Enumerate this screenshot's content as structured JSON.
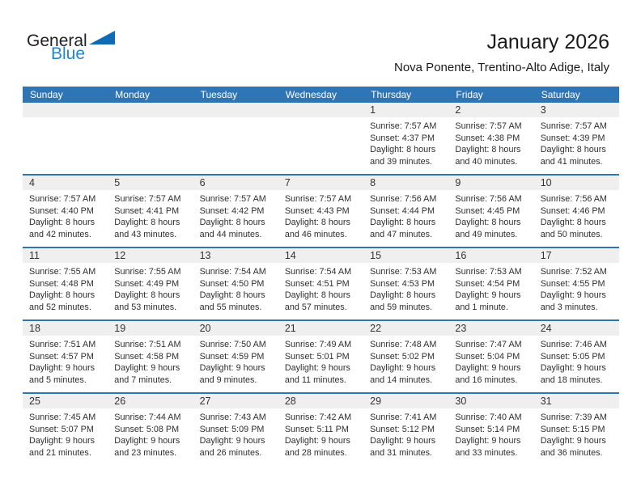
{
  "logo": {
    "text_black": "General",
    "text_blue": "Blue"
  },
  "header": {
    "title": "January 2026",
    "location": "Nova Ponente, Trentino-Alto Adige, Italy"
  },
  "colors": {
    "accent_blue": "#2E75B6",
    "band_gray": "#EFEFEF",
    "logo_blue": "#1E87CF",
    "logo_triangle_blue": "#0D6CB5"
  },
  "weekdays": [
    "Sunday",
    "Monday",
    "Tuesday",
    "Wednesday",
    "Thursday",
    "Friday",
    "Saturday"
  ],
  "weeks": [
    [
      {
        "day": "",
        "lines": []
      },
      {
        "day": "",
        "lines": []
      },
      {
        "day": "",
        "lines": []
      },
      {
        "day": "",
        "lines": []
      },
      {
        "day": "1",
        "lines": [
          "Sunrise: 7:57 AM",
          "Sunset: 4:37 PM",
          "Daylight: 8 hours",
          "and 39 minutes."
        ]
      },
      {
        "day": "2",
        "lines": [
          "Sunrise: 7:57 AM",
          "Sunset: 4:38 PM",
          "Daylight: 8 hours",
          "and 40 minutes."
        ]
      },
      {
        "day": "3",
        "lines": [
          "Sunrise: 7:57 AM",
          "Sunset: 4:39 PM",
          "Daylight: 8 hours",
          "and 41 minutes."
        ]
      }
    ],
    [
      {
        "day": "4",
        "lines": [
          "Sunrise: 7:57 AM",
          "Sunset: 4:40 PM",
          "Daylight: 8 hours",
          "and 42 minutes."
        ]
      },
      {
        "day": "5",
        "lines": [
          "Sunrise: 7:57 AM",
          "Sunset: 4:41 PM",
          "Daylight: 8 hours",
          "and 43 minutes."
        ]
      },
      {
        "day": "6",
        "lines": [
          "Sunrise: 7:57 AM",
          "Sunset: 4:42 PM",
          "Daylight: 8 hours",
          "and 44 minutes."
        ]
      },
      {
        "day": "7",
        "lines": [
          "Sunrise: 7:57 AM",
          "Sunset: 4:43 PM",
          "Daylight: 8 hours",
          "and 46 minutes."
        ]
      },
      {
        "day": "8",
        "lines": [
          "Sunrise: 7:56 AM",
          "Sunset: 4:44 PM",
          "Daylight: 8 hours",
          "and 47 minutes."
        ]
      },
      {
        "day": "9",
        "lines": [
          "Sunrise: 7:56 AM",
          "Sunset: 4:45 PM",
          "Daylight: 8 hours",
          "and 49 minutes."
        ]
      },
      {
        "day": "10",
        "lines": [
          "Sunrise: 7:56 AM",
          "Sunset: 4:46 PM",
          "Daylight: 8 hours",
          "and 50 minutes."
        ]
      }
    ],
    [
      {
        "day": "11",
        "lines": [
          "Sunrise: 7:55 AM",
          "Sunset: 4:48 PM",
          "Daylight: 8 hours",
          "and 52 minutes."
        ]
      },
      {
        "day": "12",
        "lines": [
          "Sunrise: 7:55 AM",
          "Sunset: 4:49 PM",
          "Daylight: 8 hours",
          "and 53 minutes."
        ]
      },
      {
        "day": "13",
        "lines": [
          "Sunrise: 7:54 AM",
          "Sunset: 4:50 PM",
          "Daylight: 8 hours",
          "and 55 minutes."
        ]
      },
      {
        "day": "14",
        "lines": [
          "Sunrise: 7:54 AM",
          "Sunset: 4:51 PM",
          "Daylight: 8 hours",
          "and 57 minutes."
        ]
      },
      {
        "day": "15",
        "lines": [
          "Sunrise: 7:53 AM",
          "Sunset: 4:53 PM",
          "Daylight: 8 hours",
          "and 59 minutes."
        ]
      },
      {
        "day": "16",
        "lines": [
          "Sunrise: 7:53 AM",
          "Sunset: 4:54 PM",
          "Daylight: 9 hours",
          "and 1 minute."
        ]
      },
      {
        "day": "17",
        "lines": [
          "Sunrise: 7:52 AM",
          "Sunset: 4:55 PM",
          "Daylight: 9 hours",
          "and 3 minutes."
        ]
      }
    ],
    [
      {
        "day": "18",
        "lines": [
          "Sunrise: 7:51 AM",
          "Sunset: 4:57 PM",
          "Daylight: 9 hours",
          "and 5 minutes."
        ]
      },
      {
        "day": "19",
        "lines": [
          "Sunrise: 7:51 AM",
          "Sunset: 4:58 PM",
          "Daylight: 9 hours",
          "and 7 minutes."
        ]
      },
      {
        "day": "20",
        "lines": [
          "Sunrise: 7:50 AM",
          "Sunset: 4:59 PM",
          "Daylight: 9 hours",
          "and 9 minutes."
        ]
      },
      {
        "day": "21",
        "lines": [
          "Sunrise: 7:49 AM",
          "Sunset: 5:01 PM",
          "Daylight: 9 hours",
          "and 11 minutes."
        ]
      },
      {
        "day": "22",
        "lines": [
          "Sunrise: 7:48 AM",
          "Sunset: 5:02 PM",
          "Daylight: 9 hours",
          "and 14 minutes."
        ]
      },
      {
        "day": "23",
        "lines": [
          "Sunrise: 7:47 AM",
          "Sunset: 5:04 PM",
          "Daylight: 9 hours",
          "and 16 minutes."
        ]
      },
      {
        "day": "24",
        "lines": [
          "Sunrise: 7:46 AM",
          "Sunset: 5:05 PM",
          "Daylight: 9 hours",
          "and 18 minutes."
        ]
      }
    ],
    [
      {
        "day": "25",
        "lines": [
          "Sunrise: 7:45 AM",
          "Sunset: 5:07 PM",
          "Daylight: 9 hours",
          "and 21 minutes."
        ]
      },
      {
        "day": "26",
        "lines": [
          "Sunrise: 7:44 AM",
          "Sunset: 5:08 PM",
          "Daylight: 9 hours",
          "and 23 minutes."
        ]
      },
      {
        "day": "27",
        "lines": [
          "Sunrise: 7:43 AM",
          "Sunset: 5:09 PM",
          "Daylight: 9 hours",
          "and 26 minutes."
        ]
      },
      {
        "day": "28",
        "lines": [
          "Sunrise: 7:42 AM",
          "Sunset: 5:11 PM",
          "Daylight: 9 hours",
          "and 28 minutes."
        ]
      },
      {
        "day": "29",
        "lines": [
          "Sunrise: 7:41 AM",
          "Sunset: 5:12 PM",
          "Daylight: 9 hours",
          "and 31 minutes."
        ]
      },
      {
        "day": "30",
        "lines": [
          "Sunrise: 7:40 AM",
          "Sunset: 5:14 PM",
          "Daylight: 9 hours",
          "and 33 minutes."
        ]
      },
      {
        "day": "31",
        "lines": [
          "Sunrise: 7:39 AM",
          "Sunset: 5:15 PM",
          "Daylight: 9 hours",
          "and 36 minutes."
        ]
      }
    ]
  ]
}
